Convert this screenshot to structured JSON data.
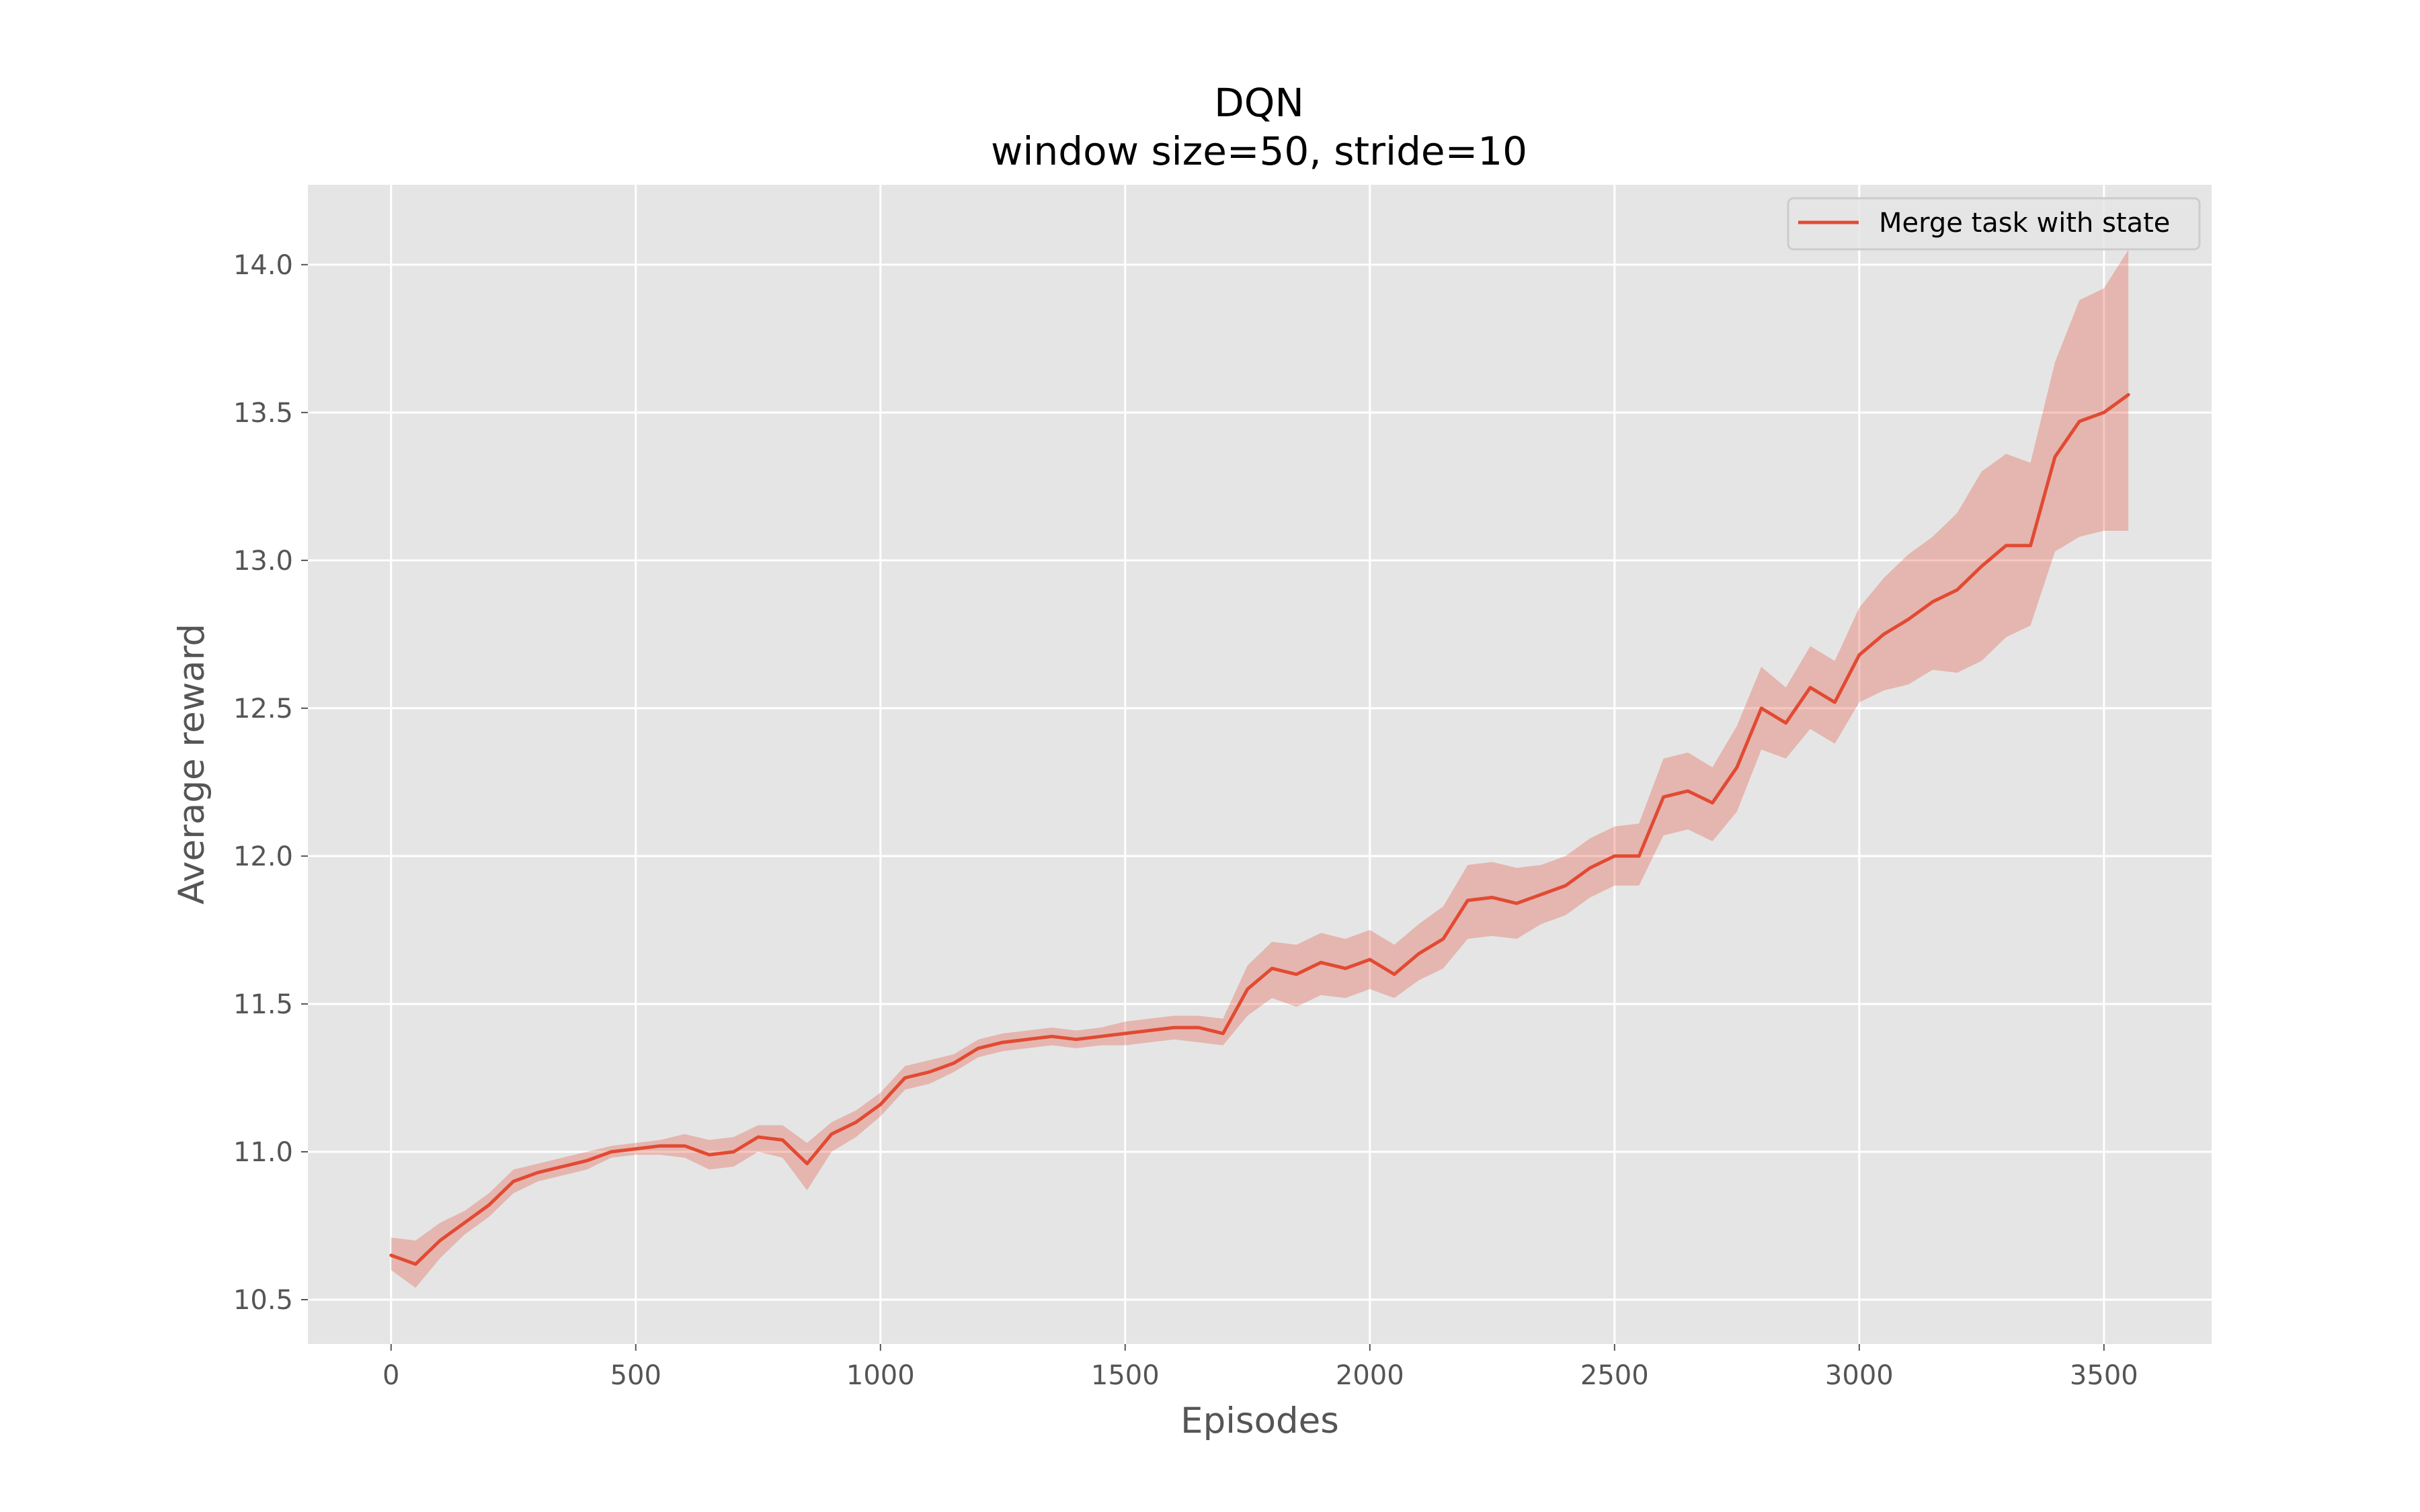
{
  "chart_data": {
    "type": "line",
    "title": "DQN",
    "subtitle": "window size=50, stride=10",
    "xlabel": "Episodes",
    "ylabel": "Average reward",
    "xlim": [
      -170,
      3720
    ],
    "ylim": [
      10.35,
      14.27
    ],
    "xticks": [
      0,
      500,
      1000,
      1500,
      2000,
      2500,
      3000,
      3500
    ],
    "yticks": [
      10.5,
      11.0,
      11.5,
      12.0,
      12.5,
      13.0,
      13.5,
      14.0
    ],
    "ytick_format": 1,
    "grid": true,
    "legend_position": "top-right",
    "colors": {
      "line": "#e24a33",
      "band": "#e24a33",
      "axes_bg": "#e5e5e5",
      "grid": "#ffffff"
    },
    "series": [
      {
        "name": "Merge task with state",
        "x": [
          0,
          50,
          100,
          150,
          200,
          250,
          300,
          350,
          400,
          450,
          500,
          550,
          600,
          650,
          700,
          750,
          800,
          850,
          900,
          950,
          1000,
          1050,
          1100,
          1150,
          1200,
          1250,
          1300,
          1350,
          1400,
          1450,
          1500,
          1550,
          1600,
          1650,
          1700,
          1750,
          1800,
          1850,
          1900,
          1950,
          2000,
          2050,
          2100,
          2150,
          2200,
          2250,
          2300,
          2350,
          2400,
          2450,
          2500,
          2550,
          2600,
          2650,
          2700,
          2750,
          2800,
          2850,
          2900,
          2950,
          3000,
          3050,
          3100,
          3150,
          3200,
          3250,
          3300,
          3350,
          3400,
          3450,
          3500,
          3550
        ],
        "values": [
          10.65,
          10.62,
          10.7,
          10.76,
          10.82,
          10.9,
          10.93,
          10.95,
          10.97,
          11.0,
          11.01,
          11.02,
          11.02,
          10.99,
          11.0,
          11.05,
          11.04,
          10.96,
          11.06,
          11.1,
          11.16,
          11.25,
          11.27,
          11.3,
          11.35,
          11.37,
          11.38,
          11.39,
          11.38,
          11.39,
          11.4,
          11.41,
          11.42,
          11.42,
          11.4,
          11.55,
          11.62,
          11.6,
          11.64,
          11.62,
          11.65,
          11.6,
          11.67,
          11.72,
          11.85,
          11.86,
          11.84,
          11.87,
          11.9,
          11.96,
          12.0,
          12.0,
          12.2,
          12.22,
          12.18,
          12.3,
          12.5,
          12.45,
          12.57,
          12.52,
          12.68,
          12.75,
          12.8,
          12.86,
          12.9,
          12.98,
          13.05,
          13.05,
          13.35,
          13.47,
          13.5,
          13.56
        ],
        "lower": [
          10.6,
          10.54,
          10.64,
          10.72,
          10.78,
          10.86,
          10.9,
          10.92,
          10.94,
          10.98,
          10.99,
          10.99,
          10.98,
          10.94,
          10.95,
          11.0,
          10.98,
          10.87,
          11.0,
          11.05,
          11.12,
          11.21,
          11.23,
          11.27,
          11.32,
          11.34,
          11.35,
          11.36,
          11.35,
          11.36,
          11.36,
          11.37,
          11.38,
          11.37,
          11.36,
          11.46,
          11.52,
          11.49,
          11.53,
          11.52,
          11.55,
          11.52,
          11.58,
          11.62,
          11.72,
          11.73,
          11.72,
          11.77,
          11.8,
          11.86,
          11.9,
          11.9,
          12.07,
          12.09,
          12.05,
          12.15,
          12.36,
          12.33,
          12.43,
          12.38,
          12.52,
          12.56,
          12.58,
          12.63,
          12.62,
          12.66,
          12.74,
          12.78,
          13.03,
          13.08,
          13.1,
          13.1
        ],
        "upper": [
          10.71,
          10.7,
          10.76,
          10.8,
          10.86,
          10.94,
          10.96,
          10.98,
          11.0,
          11.02,
          11.03,
          11.04,
          11.06,
          11.04,
          11.05,
          11.09,
          11.09,
          11.03,
          11.1,
          11.14,
          11.2,
          11.29,
          11.31,
          11.33,
          11.38,
          11.4,
          11.41,
          11.42,
          11.41,
          11.42,
          11.44,
          11.45,
          11.46,
          11.46,
          11.45,
          11.63,
          11.71,
          11.7,
          11.74,
          11.72,
          11.75,
          11.7,
          11.77,
          11.83,
          11.97,
          11.98,
          11.96,
          11.97,
          12.0,
          12.06,
          12.1,
          12.11,
          12.33,
          12.35,
          12.3,
          12.44,
          12.64,
          12.57,
          12.71,
          12.66,
          12.84,
          12.94,
          13.02,
          13.08,
          13.16,
          13.3,
          13.36,
          13.33,
          13.67,
          13.88,
          13.92,
          14.05
        ]
      }
    ]
  }
}
